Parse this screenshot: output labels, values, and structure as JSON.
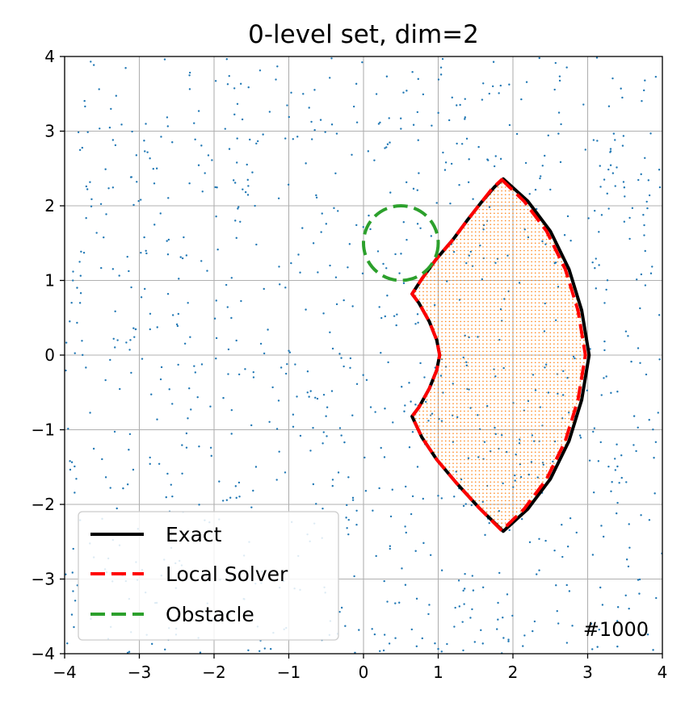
{
  "chart_data": {
    "type": "line",
    "title": "0-level set, dim=2",
    "xlabel": "",
    "ylabel": "",
    "xlim": [
      -4,
      4
    ],
    "ylim": [
      -4,
      4
    ],
    "xticks": [
      -4,
      -3,
      -2,
      -1,
      0,
      1,
      2,
      3,
      4
    ],
    "yticks": [
      -4,
      -3,
      -2,
      -1,
      0,
      1,
      2,
      3,
      4
    ],
    "xtick_labels": [
      "−4",
      "−3",
      "−2",
      "−1",
      "0",
      "1",
      "2",
      "3",
      "4"
    ],
    "ytick_labels": [
      "−4",
      "−3",
      "−2",
      "−1",
      "0",
      "1",
      "2",
      "3",
      "4"
    ],
    "grid": true,
    "legend_position": "bottom-left",
    "annotation": "#1000",
    "series": [
      {
        "name": "Exact",
        "color": "#000000",
        "style": "solid",
        "points": [
          [
            1.87,
            2.36
          ],
          [
            2.2,
            2.06
          ],
          [
            2.5,
            1.66
          ],
          [
            2.75,
            1.15
          ],
          [
            2.92,
            0.6
          ],
          [
            3.02,
            0.0
          ],
          [
            2.92,
            -0.6
          ],
          [
            2.75,
            -1.15
          ],
          [
            2.5,
            -1.66
          ],
          [
            2.2,
            -2.06
          ],
          [
            1.87,
            -2.36
          ],
          [
            1.55,
            -2.05
          ],
          [
            1.25,
            -1.72
          ],
          [
            0.98,
            -1.4
          ],
          [
            0.78,
            -1.1
          ],
          [
            0.65,
            -0.82
          ],
          [
            0.74,
            -0.7
          ],
          [
            0.88,
            -0.45
          ],
          [
            0.98,
            -0.2
          ],
          [
            1.02,
            0.0
          ],
          [
            0.98,
            0.2
          ],
          [
            0.88,
            0.45
          ],
          [
            0.74,
            0.7
          ],
          [
            0.65,
            0.82
          ],
          [
            0.78,
            1.02
          ],
          [
            0.97,
            1.28
          ],
          [
            1.2,
            1.55
          ],
          [
            1.4,
            1.82
          ],
          [
            1.58,
            2.05
          ],
          [
            1.75,
            2.25
          ],
          [
            1.87,
            2.36
          ]
        ]
      },
      {
        "name": "Local Solver",
        "color": "#ff0000",
        "style": "dashed",
        "points": [
          [
            1.85,
            2.35
          ],
          [
            2.15,
            2.06
          ],
          [
            2.45,
            1.66
          ],
          [
            2.7,
            1.15
          ],
          [
            2.87,
            0.6
          ],
          [
            2.97,
            0.0
          ],
          [
            2.87,
            -0.6
          ],
          [
            2.7,
            -1.15
          ],
          [
            2.45,
            -1.66
          ],
          [
            2.15,
            -2.06
          ],
          [
            1.85,
            -2.35
          ],
          [
            1.55,
            -2.05
          ],
          [
            1.25,
            -1.72
          ],
          [
            0.98,
            -1.4
          ],
          [
            0.78,
            -1.1
          ],
          [
            0.65,
            -0.82
          ],
          [
            0.74,
            -0.7
          ],
          [
            0.88,
            -0.45
          ],
          [
            0.98,
            -0.2
          ],
          [
            1.02,
            0.0
          ],
          [
            0.98,
            0.2
          ],
          [
            0.88,
            0.45
          ],
          [
            0.74,
            0.7
          ],
          [
            0.65,
            0.82
          ],
          [
            0.78,
            1.02
          ],
          [
            0.97,
            1.28
          ],
          [
            1.2,
            1.55
          ],
          [
            1.4,
            1.82
          ],
          [
            1.58,
            2.05
          ],
          [
            1.73,
            2.24
          ],
          [
            1.85,
            2.35
          ]
        ]
      },
      {
        "name": "Obstacle",
        "color": "#2ca02c",
        "style": "dashed",
        "shape": "circle",
        "center": [
          0.5,
          1.5
        ],
        "radius": 0.5
      }
    ],
    "scatter": {
      "color": "#1f77b4",
      "count": 1000,
      "inside_fill_color": "#ff7f0e"
    }
  }
}
